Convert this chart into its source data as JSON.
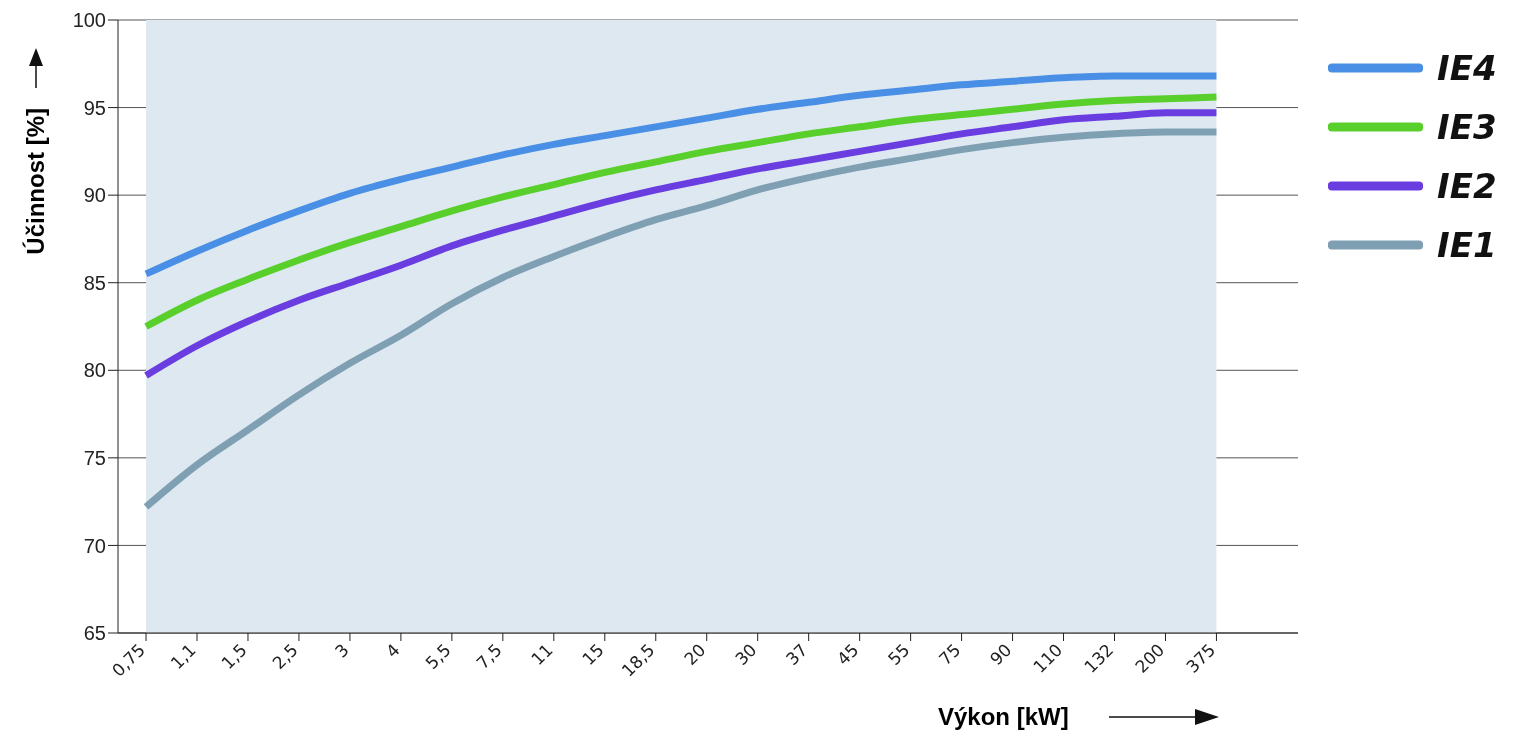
{
  "chart_data": {
    "type": "line",
    "xlabel": "Výkon [kW]",
    "ylabel": "Účinnost [%]",
    "categories": [
      "0,75",
      "1,1",
      "1,5",
      "2,5",
      "3",
      "4",
      "5,5",
      "7,5",
      "11",
      "15",
      "18,5",
      "20",
      "30",
      "37",
      "45",
      "55",
      "75",
      "90",
      "110",
      "132",
      "200",
      "375"
    ],
    "series": [
      {
        "name": "IE4",
        "color": "#4a8fe6",
        "values": [
          85.5,
          86.8,
          88.0,
          89.1,
          90.1,
          90.9,
          91.6,
          92.3,
          92.9,
          93.4,
          93.9,
          94.4,
          94.9,
          95.3,
          95.7,
          96.0,
          96.3,
          96.5,
          96.7,
          96.8,
          96.8,
          96.8
        ]
      },
      {
        "name": "IE3",
        "color": "#58cf2a",
        "values": [
          82.5,
          84.0,
          85.2,
          86.3,
          87.3,
          88.2,
          89.1,
          89.9,
          90.6,
          91.3,
          91.9,
          92.5,
          93.0,
          93.5,
          93.9,
          94.3,
          94.6,
          94.9,
          95.2,
          95.4,
          95.5,
          95.6
        ]
      },
      {
        "name": "IE2",
        "color": "#6a3de0",
        "values": [
          79.7,
          81.4,
          82.8,
          84.0,
          85.0,
          86.0,
          87.1,
          88.0,
          88.8,
          89.6,
          90.3,
          90.9,
          91.5,
          92.0,
          92.5,
          93.0,
          93.5,
          93.9,
          94.3,
          94.5,
          94.7,
          94.7
        ]
      },
      {
        "name": "IE1",
        "color": "#7f9fb3",
        "values": [
          72.2,
          74.6,
          76.6,
          78.6,
          80.4,
          82.0,
          83.8,
          85.3,
          86.5,
          87.6,
          88.6,
          89.4,
          90.3,
          91.0,
          91.6,
          92.1,
          92.6,
          93.0,
          93.3,
          93.5,
          93.6,
          93.6
        ]
      }
    ],
    "ylim": [
      65,
      100
    ],
    "yticks": [
      65,
      70,
      75,
      80,
      85,
      90,
      95,
      100
    ],
    "grid": "y",
    "legend": "top right",
    "marker": "none",
    "line_style": "solid"
  }
}
